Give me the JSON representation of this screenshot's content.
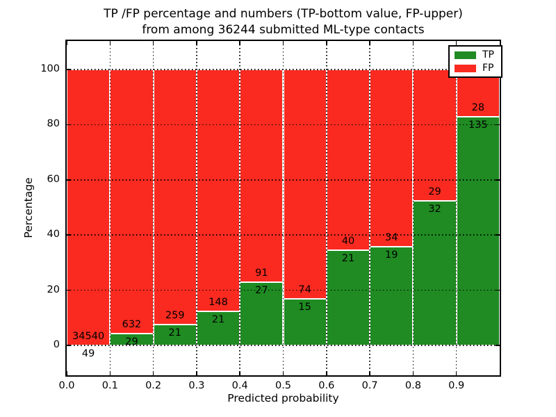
{
  "chart_data": {
    "type": "bar",
    "variant": "stacked-percentage-histogram",
    "title": "TP /FP percentage and numbers (TP-bottom value, FP-upper) from among 36244 submitted ML-type contacts",
    "title_lines": [
      "TP /FP percentage and numbers (TP-bottom value, FP-upper)",
      "from among 36244 submitted ML-type contacts"
    ],
    "xlabel": "Predicted probability",
    "ylabel": "Percentage",
    "xlim": [
      0.0,
      1.0
    ],
    "ylim": [
      -10.8,
      110.3
    ],
    "x_ticks": [
      0.0,
      0.1,
      0.2,
      0.3,
      0.4,
      0.5,
      0.6,
      0.7,
      0.8,
      0.9
    ],
    "x_tick_labels": [
      "0.0",
      "0.1",
      "0.2",
      "0.3",
      "0.4",
      "0.5",
      "0.6",
      "0.7",
      "0.8",
      "0.9"
    ],
    "y_ticks": [
      0,
      20,
      40,
      60,
      80,
      100
    ],
    "grid": "dotted-black-both-axes-drawn-over-bars",
    "total_submitted": 36244,
    "bar_value_semantics": "segment height = count/(TP+FP)*100, stacked to 100%; numeric labels are raw counts (TP bottom, FP upper)",
    "series": [
      {
        "name": "TP",
        "color": "#1f8b22"
      },
      {
        "name": "FP",
        "color": "#fa2a20"
      }
    ],
    "bins": [
      {
        "x0": 0.0,
        "x1": 0.1,
        "tp": 49,
        "fp": 34540
      },
      {
        "x0": 0.1,
        "x1": 0.2,
        "tp": 29,
        "fp": 632
      },
      {
        "x0": 0.2,
        "x1": 0.3,
        "tp": 21,
        "fp": 259
      },
      {
        "x0": 0.3,
        "x1": 0.4,
        "tp": 21,
        "fp": 148
      },
      {
        "x0": 0.4,
        "x1": 0.5,
        "tp": 27,
        "fp": 91
      },
      {
        "x0": 0.5,
        "x1": 0.6,
        "tp": 15,
        "fp": 74
      },
      {
        "x0": 0.6,
        "x1": 0.7,
        "tp": 21,
        "fp": 40
      },
      {
        "x0": 0.7,
        "x1": 0.8,
        "tp": 19,
        "fp": 34
      },
      {
        "x0": 0.8,
        "x1": 0.9,
        "tp": 32,
        "fp": 29
      },
      {
        "x0": 0.9,
        "x1": 1.0,
        "tp": 135,
        "fp": 28
      }
    ],
    "legend": {
      "position": "upper-right",
      "entries": [
        "TP",
        "FP"
      ]
    }
  }
}
